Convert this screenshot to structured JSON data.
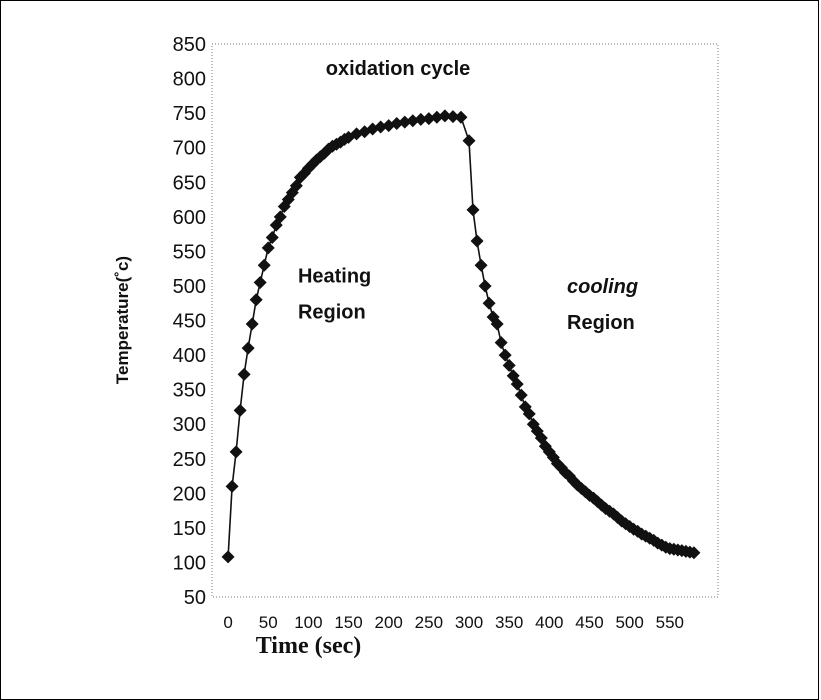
{
  "chart_data": {
    "type": "line",
    "title": "oxidation cycle",
    "xlabel": "Time (sec)",
    "ylabel": "Temperature(˚c)",
    "xlim": [
      -20,
      610
    ],
    "ylim": [
      50,
      850
    ],
    "x_ticks": [
      "0",
      "50",
      "100",
      "150",
      "200",
      "250",
      "300",
      "350",
      "400",
      "450",
      "500",
      "550"
    ],
    "y_ticks": [
      "50",
      "100",
      "150",
      "200",
      "250",
      "300",
      "350",
      "400",
      "450",
      "500",
      "550",
      "600",
      "650",
      "700",
      "750",
      "800",
      "850"
    ],
    "grid": false,
    "legend": null,
    "annotations": [
      {
        "lines": [
          "Heating",
          "Region"
        ],
        "x": 87,
        "y": 505,
        "italic_first": false
      },
      {
        "lines": [
          "cooling",
          "Region"
        ],
        "x": 422,
        "y": 490,
        "italic_first": true
      }
    ],
    "series": [
      {
        "marker": "diamond",
        "color": "#111111",
        "x": [
          0,
          5,
          10,
          15,
          20,
          25,
          30,
          35,
          40,
          45,
          50,
          55,
          60,
          65,
          70,
          75,
          80,
          85,
          90,
          95,
          100,
          105,
          110,
          115,
          120,
          125,
          130,
          135,
          140,
          145,
          150,
          160,
          170,
          180,
          190,
          200,
          210,
          220,
          230,
          240,
          250,
          260,
          270,
          280,
          290,
          300,
          305,
          310,
          315,
          320,
          325,
          330,
          335,
          340,
          345,
          350,
          355,
          360,
          365,
          370,
          375,
          380,
          385,
          390,
          395,
          400,
          405,
          410,
          415,
          420,
          425,
          430,
          435,
          440,
          445,
          450,
          455,
          460,
          465,
          470,
          475,
          480,
          485,
          490,
          495,
          500,
          505,
          510,
          515,
          520,
          525,
          530,
          535,
          540,
          545,
          550,
          555,
          560,
          565,
          570,
          575,
          580
        ],
        "y": [
          108,
          210,
          260,
          320,
          372,
          410,
          445,
          480,
          505,
          530,
          555,
          570,
          588,
          600,
          615,
          625,
          635,
          645,
          657,
          663,
          670,
          676,
          682,
          687,
          692,
          698,
          702,
          705,
          708,
          712,
          715,
          720,
          723,
          727,
          730,
          732,
          735,
          737,
          739,
          741,
          742,
          744,
          746,
          745,
          744,
          710,
          610,
          565,
          530,
          500,
          475,
          455,
          445,
          418,
          400,
          385,
          370,
          358,
          342,
          325,
          315,
          300,
          290,
          280,
          268,
          260,
          252,
          243,
          237,
          230,
          225,
          218,
          212,
          207,
          202,
          197,
          193,
          188,
          183,
          178,
          174,
          170,
          165,
          160,
          156,
          152,
          148,
          145,
          141,
          138,
          135,
          132,
          128,
          125,
          122,
          120,
          119,
          118,
          117,
          116,
          115,
          114
        ]
      }
    ]
  }
}
